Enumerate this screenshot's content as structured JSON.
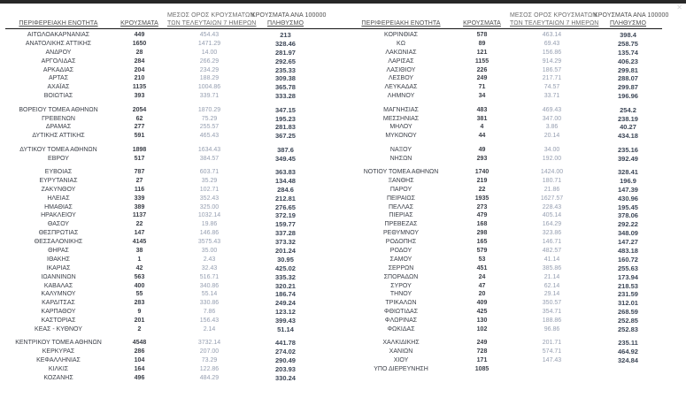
{
  "window": {
    "close_glyph": "✕"
  },
  "table_headers": {
    "region": "ΠΕΡΙΦΕΡΕΙΑΚΗ ΕΝΟΤΗΤΑ",
    "cases": "ΚΡΟΥΣΜΑΤΑ",
    "avg_line1": "ΜΕΣΟΣ ΟΡΟΣ ΚΡΟΥΣΜΑΤΩΝ",
    "avg_line2": "ΤΩΝ ΤΕΛΕΥΤΑΙΩΝ 7 ΗΜΕΡΩΝ",
    "per100k_line1": "ΚΡΟΥΣΜΑΤΑ ΑΝΑ 100000",
    "per100k_line2": "ΠΛΗΘΥΣΜΟ"
  },
  "left_table": {
    "groups": [
      [
        [
          "ΑΙΤΩΛΟΑΚΑΡΝΑΝΙΑΣ",
          "449",
          "454.43",
          "213"
        ],
        [
          "ΑΝΑΤΟΛΙΚΗΣ ΑΤΤΙΚΗΣ",
          "1650",
          "1471.29",
          "328.46"
        ],
        [
          "ΑΝΔΡΟΥ",
          "28",
          "14.00",
          "281.97"
        ],
        [
          "ΑΡΓΟΛΙΔΑΣ",
          "284",
          "266.29",
          "292.65"
        ],
        [
          "ΑΡΚΑΔΙΑΣ",
          "204",
          "234.29",
          "235.33"
        ],
        [
          "ΑΡΤΑΣ",
          "210",
          "188.29",
          "309.38"
        ],
        [
          "ΑΧΑΪΑΣ",
          "1135",
          "1004.86",
          "365.78"
        ],
        [
          "ΒΟΙΩΤΙΑΣ",
          "393",
          "339.71",
          "333.28"
        ]
      ],
      [
        [
          "ΒΟΡΕΙΟΥ ΤΟΜΕΑ ΑΘΗΝΩΝ",
          "2054",
          "1870.29",
          "347.15"
        ],
        [
          "ΓΡΕΒΕΝΩΝ",
          "62",
          "75.29",
          "195.23"
        ],
        [
          "ΔΡΑΜΑΣ",
          "277",
          "255.57",
          "281.83"
        ],
        [
          "ΔΥΤΙΚΗΣ ΑΤΤΙΚΗΣ",
          "591",
          "465.43",
          "367.25"
        ]
      ],
      [
        [
          "ΔΥΤΙΚΟΥ ΤΟΜΕΑ ΑΘΗΝΩΝ",
          "1898",
          "1634.43",
          "387.6"
        ],
        [
          "ΕΒΡΟΥ",
          "517",
          "384.57",
          "349.45"
        ]
      ],
      [
        [
          "ΕΥΒΟΙΑΣ",
          "787",
          "603.71",
          "363.83"
        ],
        [
          "ΕΥΡΥΤΑΝΙΑΣ",
          "27",
          "35.29",
          "134.48"
        ],
        [
          "ΖΑΚΥΝΘΟΥ",
          "116",
          "102.71",
          "284.6"
        ],
        [
          "ΗΛΕΙΑΣ",
          "339",
          "352.43",
          "212.81"
        ],
        [
          "ΗΜΑΘΙΑΣ",
          "389",
          "325.00",
          "276.65"
        ],
        [
          "ΗΡΑΚΛΕΙΟΥ",
          "1137",
          "1032.14",
          "372.19"
        ],
        [
          "ΘΑΣΟΥ",
          "22",
          "19.86",
          "159.77"
        ],
        [
          "ΘΕΣΠΡΩΤΙΑΣ",
          "147",
          "146.86",
          "337.28"
        ],
        [
          "ΘΕΣΣΑΛΟΝΙΚΗΣ",
          "4145",
          "3575.43",
          "373.32"
        ],
        [
          "ΘΗΡΑΣ",
          "38",
          "35.00",
          "201.24"
        ],
        [
          "ΙΘΑΚΗΣ",
          "1",
          "2.43",
          "30.95"
        ],
        [
          "ΙΚΑΡΙΑΣ",
          "42",
          "32.43",
          "425.02"
        ],
        [
          "ΙΩΑΝΝΙΝΩΝ",
          "563",
          "516.71",
          "335.32"
        ],
        [
          "ΚΑΒΑΛΑΣ",
          "400",
          "340.86",
          "320.21"
        ],
        [
          "ΚΑΛΥΜΝΟΥ",
          "55",
          "55.14",
          "186.74"
        ],
        [
          "ΚΑΡΔΙΤΣΑΣ",
          "283",
          "330.86",
          "249.24"
        ],
        [
          "ΚΑΡΠΑΘΟΥ",
          "9",
          "7.86",
          "123.12"
        ],
        [
          "ΚΑΣΤΟΡΙΑΣ",
          "201",
          "156.43",
          "399.43"
        ],
        [
          "ΚΕΑΣ - ΚΥΘΝΟΥ",
          "2",
          "2.14",
          "51.14"
        ]
      ],
      [
        [
          "ΚΕΝΤΡΙΚΟΥ ΤΟΜΕΑ ΑΘΗΝΩΝ",
          "4548",
          "3732.14",
          "441.78"
        ],
        [
          "ΚΕΡΚΥΡΑΣ",
          "286",
          "207.00",
          "274.02"
        ],
        [
          "ΚΕΦΑΛΛΗΝΙΑΣ",
          "104",
          "73.29",
          "290.49"
        ],
        [
          "ΚΙΛΚΙΣ",
          "164",
          "122.86",
          "203.93"
        ],
        [
          "ΚΟΖΑΝΗΣ",
          "496",
          "484.29",
          "330.24"
        ]
      ]
    ]
  },
  "right_table": {
    "groups": [
      [
        [
          "ΚΟΡΙΝΘΙΑΣ",
          "578",
          "463.14",
          "398.4"
        ],
        [
          "ΚΩ",
          "89",
          "69.43",
          "258.75"
        ],
        [
          "ΛΑΚΩΝΙΑΣ",
          "121",
          "156.86",
          "135.74"
        ],
        [
          "ΛΑΡΙΣΑΣ",
          "1155",
          "914.29",
          "406.23"
        ],
        [
          "ΛΑΣΙΘΙΟΥ",
          "226",
          "186.57",
          "299.81"
        ],
        [
          "ΛΕΣΒΟΥ",
          "249",
          "217.71",
          "288.07"
        ],
        [
          "ΛΕΥΚΑΔΑΣ",
          "71",
          "74.57",
          "299.87"
        ],
        [
          "ΛΗΜΝΟΥ",
          "34",
          "33.71",
          "196.96"
        ]
      ],
      [
        [
          "ΜΑΓΝΗΣΙΑΣ",
          "483",
          "469.43",
          "254.2"
        ],
        [
          "ΜΕΣΣΗΝΙΑΣ",
          "381",
          "347.00",
          "238.19"
        ],
        [
          "ΜΗΛΟΥ",
          "4",
          "3.86",
          "40.27"
        ],
        [
          "ΜΥΚΟΝΟΥ",
          "44",
          "20.14",
          "434.18"
        ]
      ],
      [
        [
          "ΝΑΞΟΥ",
          "49",
          "34.00",
          "235.16"
        ],
        [
          "ΝΗΣΩΝ",
          "293",
          "192.00",
          "392.49"
        ]
      ],
      [
        [
          "ΝΟΤΙΟΥ ΤΟΜΕΑ ΑΘΗΝΩΝ",
          "1740",
          "1424.00",
          "328.41"
        ],
        [
          "ΞΑΝΘΗΣ",
          "219",
          "180.71",
          "196.9"
        ],
        [
          "ΠΑΡΟΥ",
          "22",
          "21.86",
          "147.39"
        ],
        [
          "ΠΕΙΡΑΙΩΣ",
          "1935",
          "1627.57",
          "430.96"
        ],
        [
          "ΠΕΛΛΑΣ",
          "273",
          "228.43",
          "195.45"
        ],
        [
          "ΠΙΕΡΙΑΣ",
          "479",
          "405.14",
          "378.06"
        ],
        [
          "ΠΡΕΒΕΖΑΣ",
          "168",
          "164.29",
          "292.22"
        ],
        [
          "ΡΕΘΥΜΝΟΥ",
          "298",
          "323.86",
          "348.09"
        ],
        [
          "ΡΟΔΟΠΗΣ",
          "165",
          "146.71",
          "147.27"
        ],
        [
          "ΡΟΔΟΥ",
          "579",
          "482.57",
          "483.18"
        ],
        [
          "ΣΑΜΟΥ",
          "53",
          "41.14",
          "160.72"
        ],
        [
          "ΣΕΡΡΩΝ",
          "451",
          "385.86",
          "255.63"
        ],
        [
          "ΣΠΟΡΑΔΩΝ",
          "24",
          "21.14",
          "173.94"
        ],
        [
          "ΣΥΡΟΥ",
          "47",
          "62.14",
          "218.53"
        ],
        [
          "ΤΗΝΟΥ",
          "20",
          "29.14",
          "231.59"
        ],
        [
          "ΤΡΙΚΑΛΩΝ",
          "409",
          "350.57",
          "312.01"
        ],
        [
          "ΦΘΙΩΤΙΔΑΣ",
          "425",
          "354.71",
          "268.59"
        ],
        [
          "ΦΛΩΡΙΝΑΣ",
          "130",
          "188.86",
          "252.85"
        ],
        [
          "ΦΩΚΙΔΑΣ",
          "102",
          "96.86",
          "252.83"
        ]
      ],
      [
        [
          "ΧΑΛΚΙΔΙΚΗΣ",
          "249",
          "201.71",
          "235.11"
        ],
        [
          "ΧΑΝΙΩΝ",
          "728",
          "574.71",
          "464.92"
        ],
        [
          "ΧΙΟΥ",
          "171",
          "147.43",
          "324.84"
        ],
        [
          "ΥΠΟ ΔΙΕΡΕΥΝΗΣΗ",
          "1085",
          "",
          ""
        ]
      ]
    ]
  }
}
